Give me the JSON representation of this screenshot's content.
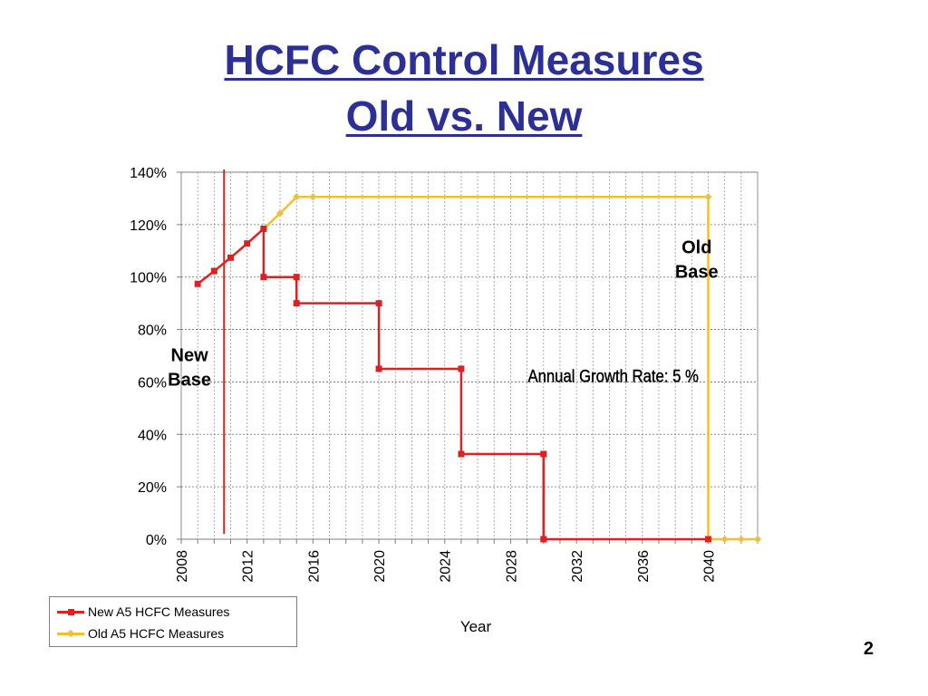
{
  "slide": {
    "title_line1": "HCFC Control Measures",
    "title_line2": "Old vs. New",
    "page_number": "2",
    "title_color": "#2b2f96"
  },
  "chart_data": {
    "type": "line",
    "xlabel": "Year",
    "ylabel": "",
    "xlim": [
      2008,
      2043
    ],
    "ylim": [
      0,
      140
    ],
    "x_ticks": [
      2008,
      2012,
      2016,
      2020,
      2024,
      2028,
      2032,
      2036,
      2040
    ],
    "y_ticks": [
      0,
      20,
      40,
      60,
      80,
      100,
      120,
      140
    ],
    "y_tick_labels": [
      "0%",
      "20%",
      "40%",
      "60%",
      "80%",
      "100%",
      "120%",
      "140%"
    ],
    "grid": true,
    "legend": "bottom-left",
    "vertical_marker_x": 2010.6,
    "annotations": [
      {
        "text": [
          "Old",
          "Base"
        ],
        "x": 2039.3,
        "y": 109
      },
      {
        "text": [
          "New",
          "Base"
        ],
        "x": 2008.5,
        "y": 68
      },
      {
        "text": [
          "Annual Growth Rate: 5 %"
        ],
        "x": 2034,
        "y": 60
      }
    ],
    "series": [
      {
        "name": "New A5 HCFC Measures",
        "color": "#e02020",
        "marker": "square",
        "points": [
          [
            2009,
            97.4
          ],
          [
            2010,
            102.3
          ],
          [
            2011,
            107.4
          ],
          [
            2012,
            112.8
          ],
          [
            2013,
            118.4
          ],
          [
            2013,
            100
          ],
          [
            2015,
            100
          ],
          [
            2015,
            90
          ],
          [
            2020,
            90
          ],
          [
            2020,
            65
          ],
          [
            2025,
            65
          ],
          [
            2025,
            32.5
          ],
          [
            2030,
            32.5
          ],
          [
            2030,
            0
          ],
          [
            2040,
            0
          ]
        ]
      },
      {
        "name": "Old A5 HCFC Measures",
        "color": "#f0c030",
        "marker": "diamond",
        "points": [
          [
            2013,
            118.4
          ],
          [
            2014,
            124.3
          ],
          [
            2015,
            130.6
          ],
          [
            2016,
            130.6
          ],
          [
            2040,
            130.6
          ],
          [
            2040,
            0
          ],
          [
            2041,
            0
          ],
          [
            2042,
            0
          ],
          [
            2043,
            0
          ]
        ]
      }
    ]
  }
}
